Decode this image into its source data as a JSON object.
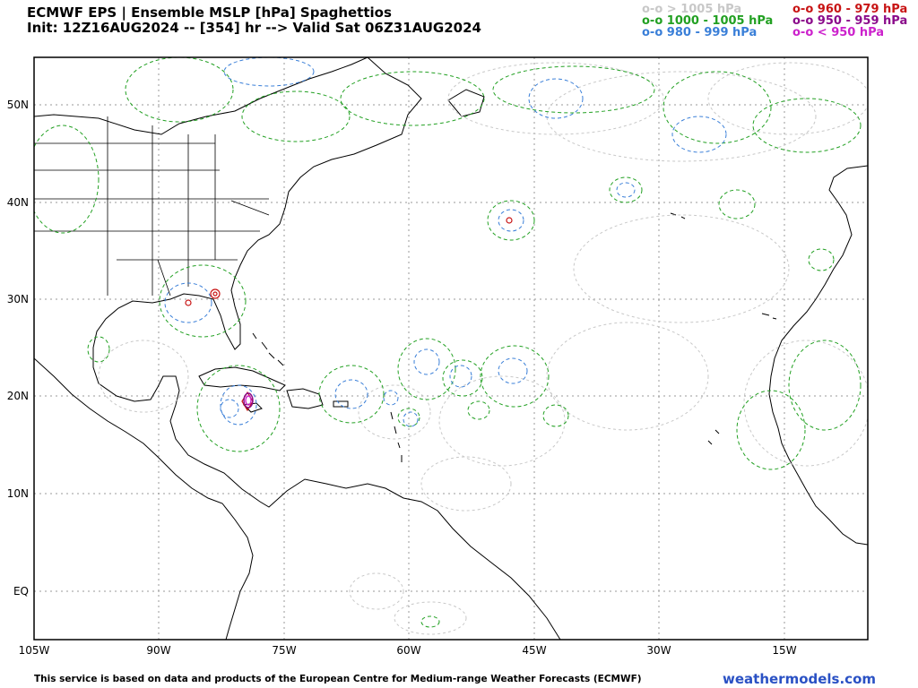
{
  "header": {
    "title": "ECMWF EPS | Ensemble MSLP [hPa] Spaghettios",
    "subtitle": "Init: 12Z16AUG2024 -- [354] hr --> Valid Sat 06Z31AUG2024"
  },
  "legend": [
    {
      "text": "o-o > 1005 hPa",
      "color": "#c8c8c8"
    },
    {
      "text": "o-o 1000 - 1005 hPa",
      "color": "#22a022"
    },
    {
      "text": "o-o 980 - 999 hPa",
      "color": "#3a7fd8"
    },
    {
      "text": "o-o 960 - 979 hPa",
      "color": "#c81414"
    },
    {
      "text": "o-o 950 - 959 hPa",
      "color": "#8a0a8a"
    },
    {
      "text": "o-o < 950 hPa",
      "color": "#cc22cc"
    }
  ],
  "map": {
    "lat_labels": [
      "50N",
      "40N",
      "30N",
      "20N",
      "10N",
      "EQ"
    ],
    "lon_labels": [
      "105W",
      "90W",
      "75W",
      "60W",
      "45W",
      "30W",
      "15W"
    ]
  },
  "footer": {
    "credit": "This service is based on data and products of the European Centre for Medium-range Weather Forecasts (ECMWF)",
    "brand": "weathermodels.com"
  }
}
